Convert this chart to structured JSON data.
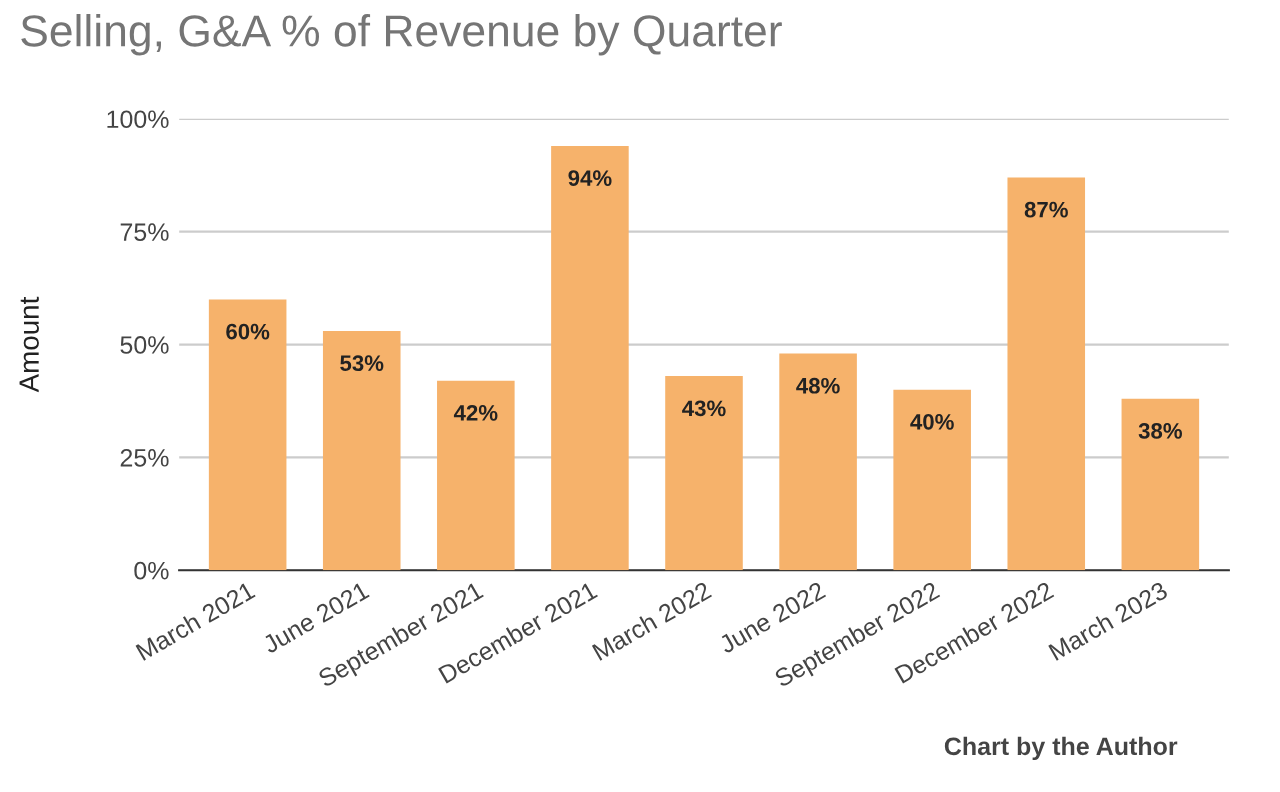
{
  "chart_data": {
    "type": "bar",
    "title": "Selling, G&A % of Revenue by Quarter",
    "ylabel": "Amount",
    "categories": [
      "March 2021",
      "June 2021",
      "September 2021",
      "December 2021",
      "March 2022",
      "June 2022",
      "September 2022",
      "December 2022",
      "March 2023"
    ],
    "values": [
      60,
      53,
      42,
      94,
      43,
      48,
      40,
      87,
      38
    ],
    "value_labels": [
      "60%",
      "53%",
      "42%",
      "94%",
      "43%",
      "48%",
      "40%",
      "87%",
      "38%"
    ],
    "color": "#f6b26b",
    "ylim": [
      0,
      100
    ],
    "yticks": [
      {
        "value": 0,
        "label": "0%"
      },
      {
        "value": 25,
        "label": "25%"
      },
      {
        "value": 50,
        "label": "50%"
      },
      {
        "value": 75,
        "label": "75%"
      },
      {
        "value": 100,
        "label": "100%"
      }
    ],
    "grid": "y",
    "legend": false,
    "annotations": [
      "Chart by the Author"
    ]
  }
}
